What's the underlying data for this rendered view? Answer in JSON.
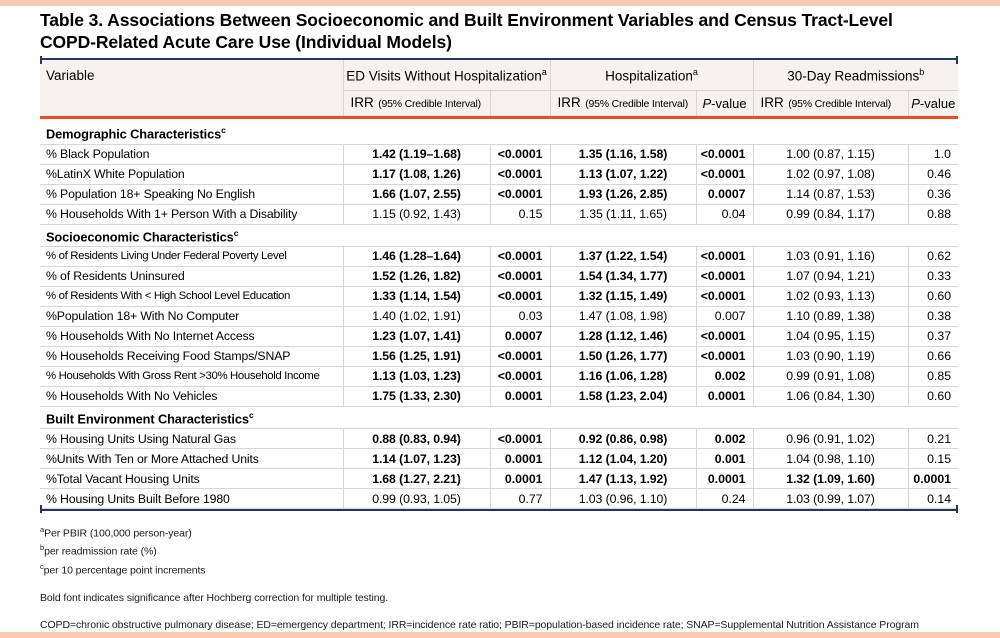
{
  "page": {
    "title": "Table 3. Associations Between Socioeconomic and Built Environment Variables and Census Tract-Level COPD-Related Acute Care Use (Individual Models)"
  },
  "colors": {
    "accent_orange": "#EE4B20",
    "navy": "#1F3864",
    "peach_band": "#F9C9B2",
    "header_bg": "#F5F2EF",
    "grid_border": "#D9D6D2"
  },
  "table": {
    "header": {
      "variable_label": "Variable",
      "groups": [
        {
          "label": "ED Visits Without Hospitalization",
          "sup": "a",
          "irr": "IRR",
          "irr_sub": "(95% Credible Interval)",
          "p_italic": "",
          "p_rest": ""
        },
        {
          "label": "Hospitalization",
          "sup": "a",
          "irr": "IRR",
          "irr_sub": "(95% Credible Interval)",
          "p_italic": "P",
          "p_rest": "-value"
        },
        {
          "label": "30-Day Readmissions",
          "sup": "b",
          "irr": "IRR",
          "irr_sub": "(95% Credible Interval)",
          "p_italic": "P",
          "p_rest": "-value"
        }
      ]
    },
    "sections": [
      {
        "title": "Demographic Characteristics",
        "sup": "c",
        "rows": [
          {
            "variable": "% Black Population",
            "cells": [
              {
                "t": "1.42 (1.19–1.68)",
                "b": true
              },
              {
                "t": "<0.0001",
                "b": true
              },
              {
                "t": "1.35 (1.16, 1.58)",
                "b": true
              },
              {
                "t": "<0.0001",
                "b": true
              },
              {
                "t": "1.00 (0.87, 1.15)",
                "b": false
              },
              {
                "t": "1.0",
                "b": false
              }
            ]
          },
          {
            "variable": "%LatinX White Population",
            "cells": [
              {
                "t": "1.17 (1.08, 1.26)",
                "b": true
              },
              {
                "t": "<0.0001",
                "b": true
              },
              {
                "t": "1.13 (1.07, 1.22)",
                "b": true
              },
              {
                "t": "<0.0001",
                "b": true
              },
              {
                "t": "1.02 (0.97, 1.08)",
                "b": false
              },
              {
                "t": "0.46",
                "b": false
              }
            ]
          },
          {
            "variable": "% Population 18+ Speaking No English",
            "cells": [
              {
                "t": "1.66 (1.07, 2.55)",
                "b": true
              },
              {
                "t": "<0.0001",
                "b": true
              },
              {
                "t": "1.93 (1.26, 2.85)",
                "b": true
              },
              {
                "t": "0.0007",
                "b": true
              },
              {
                "t": "1.14 (0.87, 1.53)",
                "b": false
              },
              {
                "t": "0.36",
                "b": false
              }
            ]
          },
          {
            "variable": "% Households With 1+ Person With a Disability",
            "cells": [
              {
                "t": "1.15 (0.92, 1.43)",
                "b": false
              },
              {
                "t": "0.15",
                "b": false
              },
              {
                "t": "1.35 (1.11, 1.65)",
                "b": false
              },
              {
                "t": "0.04",
                "b": false
              },
              {
                "t": "0.99 (0.84, 1.17)",
                "b": false
              },
              {
                "t": "0.88",
                "b": false
              }
            ]
          }
        ]
      },
      {
        "title": "Socioeconomic Characteristics",
        "sup": "c",
        "rows": [
          {
            "variable": "% of Residents Living Under Federal Poverty Level",
            "cells": [
              {
                "t": "1.46 (1.28–1.64)",
                "b": true
              },
              {
                "t": "<0.0001",
                "b": true
              },
              {
                "t": "1.37 (1.22, 1.54)",
                "b": true
              },
              {
                "t": "<0.0001",
                "b": true
              },
              {
                "t": "1.03 (0.91, 1.16)",
                "b": false
              },
              {
                "t": "0.62",
                "b": false
              }
            ]
          },
          {
            "variable": "% of Residents Uninsured",
            "cells": [
              {
                "t": "1.52 (1.26, 1.82)",
                "b": true
              },
              {
                "t": "<0.0001",
                "b": true
              },
              {
                "t": "1.54 (1.34, 1.77)",
                "b": true
              },
              {
                "t": "<0.0001",
                "b": true
              },
              {
                "t": "1.07 (0.94, 1.21)",
                "b": false
              },
              {
                "t": "0.33",
                "b": false
              }
            ]
          },
          {
            "variable": "% of Residents With < High School Level Education",
            "cells": [
              {
                "t": "1.33 (1.14, 1.54)",
                "b": true
              },
              {
                "t": "<0.0001",
                "b": true
              },
              {
                "t": "1.32 (1.15, 1.49)",
                "b": true
              },
              {
                "t": "<0.0001",
                "b": true
              },
              {
                "t": "1.02 (0.93, 1.13)",
                "b": false
              },
              {
                "t": "0.60",
                "b": false
              }
            ]
          },
          {
            "variable": "%Population 18+ With No Computer",
            "cells": [
              {
                "t": "1.40 (1.02, 1.91)",
                "b": false
              },
              {
                "t": "0.03",
                "b": false
              },
              {
                "t": "1.47 (1.08, 1.98)",
                "b": false
              },
              {
                "t": "0.007",
                "b": false
              },
              {
                "t": "1.10 (0.89, 1.38)",
                "b": false
              },
              {
                "t": "0.38",
                "b": false
              }
            ]
          },
          {
            "variable": "% Households With No Internet Access",
            "cells": [
              {
                "t": "1.23 (1.07, 1.41)",
                "b": true
              },
              {
                "t": "0.0007",
                "b": true
              },
              {
                "t": "1.28 (1.12, 1.46)",
                "b": true
              },
              {
                "t": "<0.0001",
                "b": true
              },
              {
                "t": "1.04 (0.95, 1.15)",
                "b": false
              },
              {
                "t": "0.37",
                "b": false
              }
            ]
          },
          {
            "variable": "% Households Receiving Food Stamps/SNAP",
            "cells": [
              {
                "t": "1.56 (1.25, 1.91)",
                "b": true
              },
              {
                "t": "<0.0001",
                "b": true
              },
              {
                "t": "1.50 (1.26, 1.77)",
                "b": true
              },
              {
                "t": "<0.0001",
                "b": true
              },
              {
                "t": "1.03 (0.90, 1.19)",
                "b": false
              },
              {
                "t": "0.66",
                "b": false
              }
            ]
          },
          {
            "variable": "% Households With Gross Rent >30% Household Income",
            "cells": [
              {
                "t": "1.13 (1.03, 1.23)",
                "b": true
              },
              {
                "t": "<0.0001",
                "b": true
              },
              {
                "t": "1.16 (1.06, 1.28)",
                "b": true
              },
              {
                "t": "0.002",
                "b": true
              },
              {
                "t": "0.99 (0.91, 1.08)",
                "b": false
              },
              {
                "t": "0.85",
                "b": false
              }
            ]
          },
          {
            "variable": "% Households With No Vehicles",
            "cells": [
              {
                "t": "1.75 (1.33, 2.30)",
                "b": true
              },
              {
                "t": "0.0001",
                "b": true
              },
              {
                "t": "1.58 (1.23, 2.04)",
                "b": true
              },
              {
                "t": "0.0001",
                "b": true
              },
              {
                "t": "1.06 (0.84, 1.30)",
                "b": false
              },
              {
                "t": "0.60",
                "b": false
              }
            ]
          }
        ]
      },
      {
        "title": "Built Environment Characteristics",
        "sup": "c",
        "rows": [
          {
            "variable": "% Housing Units Using Natural Gas",
            "cells": [
              {
                "t": "0.88 (0.83, 0.94)",
                "b": true
              },
              {
                "t": "<0.0001",
                "b": true
              },
              {
                "t": "0.92 (0.86, 0.98)",
                "b": true
              },
              {
                "t": "0.002",
                "b": true
              },
              {
                "t": "0.96 (0.91, 1.02)",
                "b": false
              },
              {
                "t": "0.21",
                "b": false
              }
            ]
          },
          {
            "variable": "%Units With Ten or More Attached Units",
            "cells": [
              {
                "t": "1.14 (1.07, 1.23)",
                "b": true
              },
              {
                "t": "0.0001",
                "b": true
              },
              {
                "t": "1.12 (1.04, 1.20)",
                "b": true
              },
              {
                "t": "0.001",
                "b": true
              },
              {
                "t": "1.04 (0.98, 1.10)",
                "b": false
              },
              {
                "t": "0.15",
                "b": false
              }
            ]
          },
          {
            "variable": "%Total Vacant Housing Units",
            "cells": [
              {
                "t": "1.68 (1.27, 2.21)",
                "b": true
              },
              {
                "t": "0.0001",
                "b": true
              },
              {
                "t": "1.47 (1.13, 1.92)",
                "b": true
              },
              {
                "t": "0.0001",
                "b": true
              },
              {
                "t": "1.32 (1.09, 1.60)",
                "b": true
              },
              {
                "t": "0.0001",
                "b": true
              }
            ]
          },
          {
            "variable": "% Housing Units Built Before 1980",
            "cells": [
              {
                "t": "0.99 (0.93, 1.05)",
                "b": false
              },
              {
                "t": "0.77",
                "b": false
              },
              {
                "t": "1.03 (0.96, 1.10)",
                "b": false
              },
              {
                "t": "0.24",
                "b": false
              },
              {
                "t": "1.03 (0.99, 1.07)",
                "b": false
              },
              {
                "t": "0.14",
                "b": false
              }
            ]
          }
        ]
      }
    ]
  },
  "footnotes": {
    "a_sup": "a",
    "a_text": "Per PBIR (100,000 person-year)",
    "b_sup": "b",
    "b_text": "per readmission rate (%)",
    "c_sup": "c",
    "c_text": "per 10 percentage point increments",
    "bold_note": "Bold font indicates significance after Hochberg correction for multiple testing.",
    "abbreviations": "COPD=chronic obstructive pulmonary disease; ED=emergency department; IRR=incidence rate ratio; PBIR=population-based incidence rate; SNAP=Supplemental Nutrition Assistance Program"
  }
}
